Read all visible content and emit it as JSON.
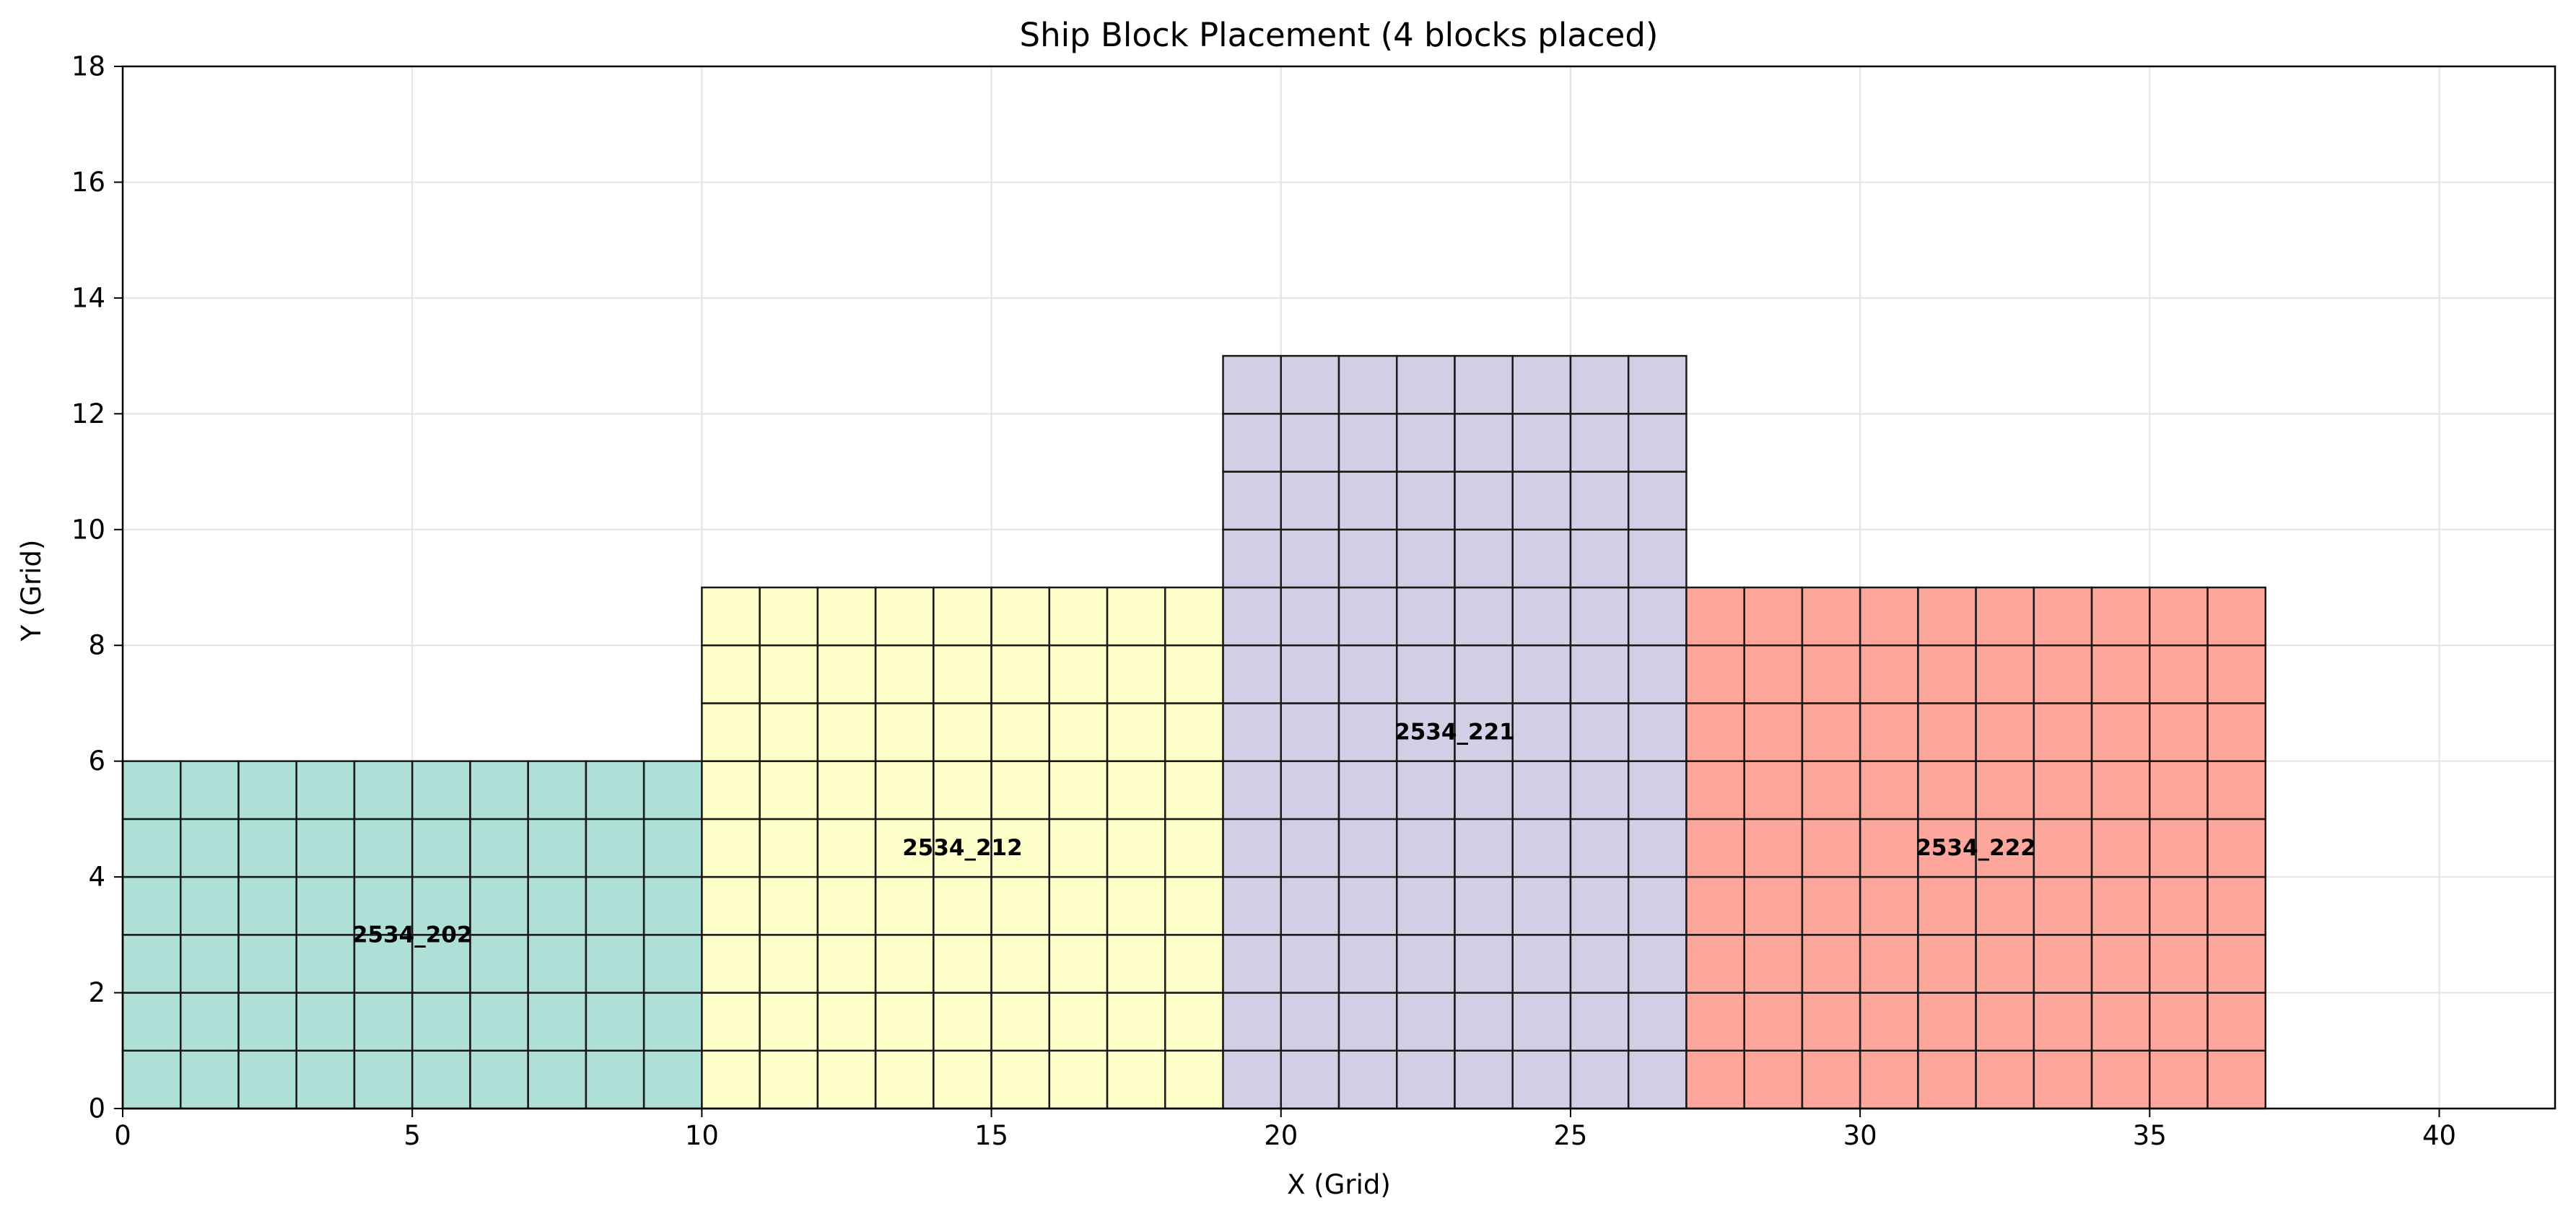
{
  "chart_data": {
    "type": "heatmap",
    "title": "Ship Block Placement (4 blocks placed)",
    "xlabel": "X (Grid)",
    "ylabel": "Y (Grid)",
    "xlim": [
      0,
      42
    ],
    "ylim": [
      0,
      18
    ],
    "xticks": [
      0,
      5,
      10,
      15,
      20,
      25,
      30,
      35,
      40
    ],
    "yticks": [
      0,
      2,
      4,
      6,
      8,
      10,
      12,
      14,
      16,
      18
    ],
    "grid": true,
    "blocks": [
      {
        "name": "2534_202",
        "x": 0,
        "y": 0,
        "w": 10,
        "h": 6,
        "color": "#8dd3c7",
        "label_at": [
          5,
          3
        ]
      },
      {
        "name": "2534_212",
        "x": 10,
        "y": 0,
        "w": 9,
        "h": 9,
        "color": "#ffffb3",
        "label_at": [
          14.5,
          4.5
        ]
      },
      {
        "name": "2534_221",
        "x": 19,
        "y": 0,
        "w": 8,
        "h": 13,
        "color": "#bebada",
        "label_at": [
          23,
          6.5
        ]
      },
      {
        "name": "2534_222",
        "x": 27,
        "y": 0,
        "w": 10,
        "h": 9,
        "color": "#fb8072",
        "label_at": [
          32,
          4.5
        ]
      }
    ]
  }
}
